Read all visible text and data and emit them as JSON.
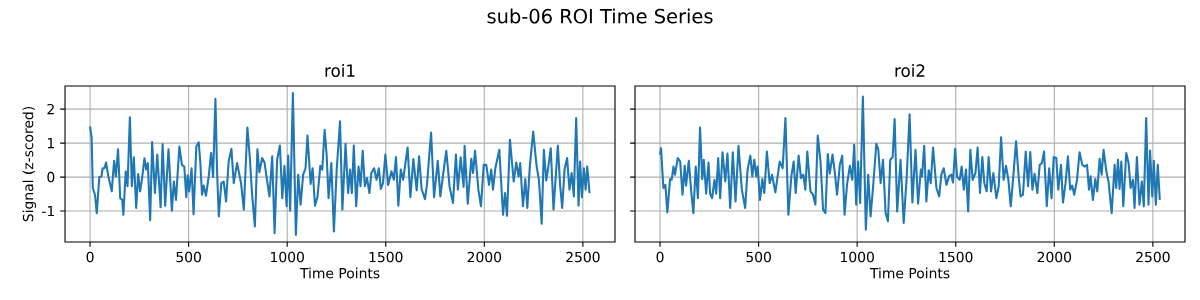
{
  "chart_data": [
    {
      "type": "line",
      "title": "sub-06 ROI Time Series",
      "subtitle": "roi1",
      "xlabel": "Time Points",
      "ylabel": "Signal (z-scored)",
      "xlim": [
        -127,
        2663
      ],
      "ylim": [
        -1.91,
        2.68
      ],
      "xticks": [
        0,
        500,
        1000,
        1500,
        2000,
        2500
      ],
      "yticks": [
        -1,
        0,
        1,
        2
      ],
      "grid": true,
      "series": [
        {
          "color": "#1f77b4",
          "x": [
            0,
            8,
            14,
            25,
            34,
            47,
            58,
            64,
            73,
            81,
            93,
            110,
            122,
            131,
            142,
            153,
            163,
            169,
            181,
            190,
            202,
            212,
            222,
            234,
            244,
            254,
            264,
            276,
            285,
            293,
            305,
            315,
            329,
            341,
            358,
            368,
            381,
            398,
            415,
            425,
            436,
            453,
            466,
            478,
            488,
            495,
            503,
            515,
            525,
            539,
            551,
            559,
            568,
            576,
            588,
            602,
            614,
            624,
            636,
            644,
            653,
            666,
            678,
            690,
            703,
            717,
            729,
            746,
            766,
            780,
            798,
            810,
            822,
            836,
            849,
            859,
            873,
            885,
            895,
            910,
            924,
            936,
            949,
            963,
            975,
            986,
            997,
            1005,
            1015,
            1029,
            1044,
            1056,
            1068,
            1081,
            1093,
            1103,
            1119,
            1129,
            1141,
            1154,
            1168,
            1178,
            1190,
            1200,
            1210,
            1224,
            1237,
            1251,
            1268,
            1280,
            1296,
            1309,
            1319,
            1328,
            1338,
            1350,
            1362,
            1372,
            1383,
            1394,
            1405,
            1417,
            1427,
            1441,
            1453,
            1465,
            1475,
            1486,
            1498,
            1512,
            1529,
            1541,
            1552,
            1564,
            1576,
            1588,
            1611,
            1625,
            1640,
            1657,
            1669,
            1682,
            1699,
            1709,
            1730,
            1745,
            1764,
            1777,
            1792,
            1807,
            1824,
            1841,
            1856,
            1866,
            1880,
            1895,
            1900,
            1916,
            1934,
            1943,
            1953,
            1970,
            1983,
            1997,
            2010,
            2024,
            2035,
            2044,
            2056,
            2076,
            2095,
            2105,
            2115,
            2130,
            2149,
            2162,
            2174,
            2182,
            2196,
            2208,
            2218,
            2231,
            2248,
            2265,
            2277,
            2291,
            2302,
            2314,
            2326,
            2337,
            2351,
            2373,
            2385,
            2395,
            2407,
            2420,
            2432,
            2443,
            2454,
            2466,
            2478,
            2486,
            2495,
            2505,
            2514,
            2522,
            2534
          ],
          "values": [
            1.49,
            1.15,
            -0.32,
            -0.52,
            -1.06,
            0,
            0.02,
            0.26,
            0.26,
            0.43,
            0.02,
            -0.42,
            0.48,
            0.02,
            0.82,
            -0.62,
            -0.67,
            -1.11,
            0.17,
            -0.27,
            1.76,
            -0.27,
            0.58,
            -0.91,
            0.09,
            -0.42,
            -0.03,
            0.55,
            0.22,
            0.41,
            -1.27,
            1.03,
            -0.47,
            0.66,
            -0.89,
            0.97,
            -0.84,
            0.82,
            -0.99,
            -0.13,
            -0.67,
            0.9,
            0.36,
            0.31,
            -0.59,
            0.05,
            -0.42,
            0.26,
            -1.09,
            0.9,
            1.02,
            0.46,
            -0.52,
            -0.25,
            -0.55,
            0.02,
            0.71,
            0,
            2.3,
            0.22,
            -1.16,
            -0.18,
            -0.13,
            -0.72,
            0.46,
            0.83,
            -0.18,
            0.41,
            -0.18,
            -0.96,
            1.46,
            0.61,
            -0.52,
            -1.45,
            0.82,
            0.14,
            0.56,
            0.43,
            0.02,
            -0.57,
            0.61,
            -1.65,
            0.51,
            0.93,
            -0.62,
            0.33,
            -0.86,
            0.63,
            -0.99,
            2.47,
            -1.7,
            0.07,
            -0.81,
            0.07,
            0.26,
            1.22,
            -0.2,
            0.26,
            -0.84,
            -0.57,
            0.33,
            0.22,
            1.39,
            0.66,
            -0.62,
            0.41,
            -1.6,
            0.2,
            1.64,
            -0.96,
            0.98,
            -0.47,
            0.22,
            -0.47,
            0.93,
            -0.86,
            0.31,
            -0.27,
            0.77,
            -0.27,
            -0.03,
            -0.47,
            0.12,
            0.26,
            -0.08,
            0.26,
            -0.35,
            -0.18,
            0.66,
            -0.23,
            0.17,
            -0.08,
            0.59,
            -0.84,
            0.22,
            -0.08,
            0.87,
            -0.59,
            0.53,
            -0.39,
            0.61,
            -0.35,
            -0.65,
            -0.23,
            1.31,
            -0.59,
            0.48,
            -0.57,
            0.12,
            0.77,
            -0.29,
            -0.76,
            0.66,
            -0.37,
            0.58,
            -0.29,
            0.92,
            -0.78,
            0.54,
            0.12,
            0.77,
            -0.37,
            -0.86,
            0.36,
            0.36,
            -0.23,
            0.22,
            -0.37,
            0.26,
            0.8,
            -1.11,
            -0.47,
            -1.14,
            1.1,
            -0.13,
            0.43,
            0.02,
            0.41,
            -0.86,
            -0.06,
            -0.91,
            0.33,
            1.34,
            0.33,
            -0.08,
            -1.37,
            0.8,
            -0.1,
            0.36,
            0.85,
            -0.96,
            0.93,
            -0.27,
            -0.91,
            0.22,
            0.56,
            -0.37,
            0.12,
            -0.57,
            1.74,
            -0.84,
            0.46,
            -0.59,
            0.26,
            -0.37,
            0.31,
            -0.47
          ]
        }
      ]
    },
    {
      "type": "line",
      "subtitle": "roi2",
      "xlabel": "Time Points",
      "xlim": [
        -127,
        2663
      ],
      "ylim": [
        -1.91,
        2.68
      ],
      "xticks": [
        0,
        500,
        1000,
        1500,
        2000,
        2500
      ],
      "yticks": [
        -1,
        0,
        1,
        2
      ],
      "grid": true,
      "tick_labels": "x",
      "series": [
        {
          "color": "#1f77b4",
          "x": [
            0,
            5,
            17,
            27,
            37,
            51,
            59,
            68,
            76,
            90,
            102,
            114,
            125,
            132,
            146,
            158,
            169,
            181,
            192,
            203,
            214,
            222,
            234,
            246,
            254,
            264,
            276,
            285,
            295,
            305,
            317,
            331,
            342,
            356,
            369,
            383,
            398,
            415,
            432,
            444,
            458,
            468,
            478,
            488,
            495,
            507,
            519,
            529,
            542,
            556,
            568,
            585,
            607,
            622,
            636,
            651,
            666,
            678,
            688,
            703,
            715,
            727,
            737,
            747,
            763,
            776,
            788,
            800,
            814,
            827,
            839,
            851,
            861,
            875,
            886,
            898,
            912,
            924,
            936,
            949,
            963,
            975,
            985,
            995,
            1005,
            1015,
            1029,
            1044,
            1056,
            1068,
            1081,
            1097,
            1107,
            1119,
            1131,
            1144,
            1156,
            1168,
            1180,
            1190,
            1203,
            1220,
            1236,
            1251,
            1266,
            1280,
            1296,
            1309,
            1323,
            1329,
            1340,
            1351,
            1363,
            1373,
            1385,
            1402,
            1416,
            1427,
            1439,
            1453,
            1466,
            1478,
            1486,
            1497,
            1507,
            1520,
            1530,
            1541,
            1552,
            1563,
            1574,
            1586,
            1600,
            1611,
            1623,
            1635,
            1645,
            1657,
            1667,
            1679,
            1691,
            1706,
            1718,
            1730,
            1743,
            1755,
            1767,
            1779,
            1792,
            1806,
            1819,
            1829,
            1841,
            1855,
            1867,
            1878,
            1889,
            1900,
            1914,
            1926,
            1937,
            1948,
            1962,
            1974,
            1986,
            1997,
            2010,
            2020,
            2034,
            2044,
            2057,
            2069,
            2081,
            2091,
            2101,
            2115,
            2128,
            2142,
            2154,
            2166,
            2176,
            2184,
            2196,
            2208,
            2218,
            2230,
            2240,
            2250,
            2264,
            2275,
            2291,
            2306,
            2314,
            2323,
            2331,
            2340,
            2350,
            2365,
            2377,
            2387,
            2399,
            2407,
            2419,
            2432,
            2444,
            2454,
            2466,
            2478,
            2486,
            2497,
            2505,
            2515,
            2525,
            2535
          ],
          "values": [
            0.66,
            0.85,
            -0.32,
            -0.23,
            -1.04,
            -0.06,
            -0.08,
            0.31,
            0.07,
            0.56,
            0.46,
            -0.52,
            0.33,
            -0.25,
            0.48,
            -0.42,
            -1.06,
            0.31,
            -0.62,
            1.46,
            -0.06,
            0.51,
            -0.49,
            0.43,
            -0.49,
            -0.62,
            -0.08,
            -0.49,
            0.56,
            -0.62,
            0.73,
            -0.13,
            0.69,
            -0.91,
            0.73,
            -0.72,
            0.92,
            -0.37,
            -0.91,
            0.22,
            0.63,
            0.02,
            0.51,
            0.02,
            0.31,
            -0.67,
            -0.06,
            -0.47,
            0.75,
            -0.18,
            0.07,
            -0.45,
            0.46,
            0.26,
            1.74,
            -1.11,
            0.02,
            0.46,
            -0.47,
            0.63,
            -0.03,
            0.07,
            -0.37,
            0.75,
            -0.42,
            -0.52,
            -0.81,
            1.22,
            0.46,
            -0.96,
            -1.06,
            0.68,
            0.1,
            0.66,
            0.17,
            -0.52,
            0.36,
            0.63,
            -1.11,
            -0.2,
            0.33,
            -0.08,
            0.95,
            -0.81,
            0.46,
            -0.76,
            2.37,
            -1.55,
            0.07,
            -1.16,
            -0.27,
            0.98,
            0.82,
            -0.18,
            0.51,
            -1.04,
            -1.3,
            0.51,
            0.59,
            1.71,
            -1.01,
            0.51,
            -1.35,
            -0.03,
            1.85,
            -0.75,
            0.8,
            -0.78,
            0.22,
            0.02,
            0.92,
            -0.72,
            0.2,
            -0.18,
            0.87,
            -0.32,
            -0.57,
            0.07,
            0.26,
            -0.23,
            0.02,
            0.07,
            -0.16,
            0.83,
            0,
            -0.08,
            0.31,
            -0.37,
            0.22,
            -1.01,
            0.8,
            -0.08,
            0.12,
            0.87,
            -0.47,
            0.59,
            -0.18,
            -0.42,
            0.59,
            -0.42,
            0.12,
            -0.62,
            -0.27,
            1.17,
            -0.08,
            0.33,
            -0.08,
            -0.86,
            0.02,
            1.05,
            0.02,
            -0.57,
            -0.52,
            0.75,
            -0.27,
            0.74,
            -0.37,
            0.1,
            -0.47,
            0.36,
            0.41,
            0.75,
            -0.86,
            0.26,
            -0.62,
            0.59,
            0.56,
            -0.37,
            0.36,
            -0.75,
            -0.18,
            0.61,
            -0.37,
            -0.25,
            -0.52,
            -0.1,
            0.73,
            0.36,
            0.31,
            0.36,
            -0.37,
            0.02,
            -0.67,
            -0.06,
            -0.42,
            0.54,
            0.07,
            0.8,
            0.17,
            -0.13,
            -1.06,
            0.36,
            -0.32,
            0.51,
            -0.35,
            0.46,
            -0.86,
            0.71,
            0.41,
            -0.32,
            -0.08,
            -0.91,
            0.59,
            -0.81,
            -0.13,
            -0.86,
            1.74,
            -0.81,
            0.78,
            -0.57,
            0.48,
            -0.81,
            0.36,
            -0.67
          ]
        }
      ]
    }
  ]
}
